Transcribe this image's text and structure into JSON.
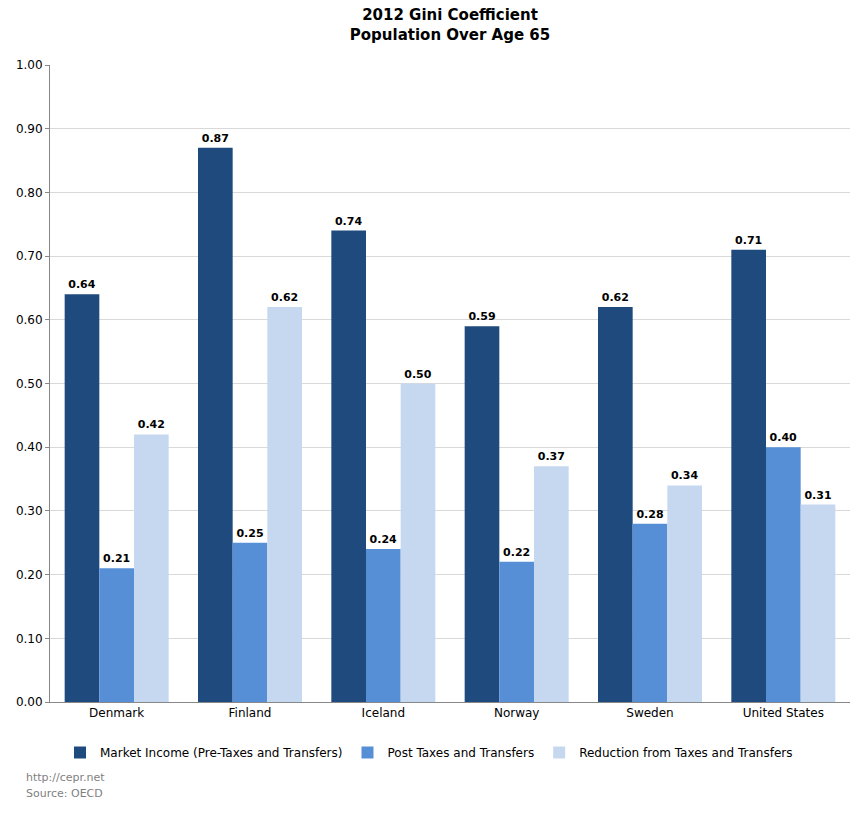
{
  "chart_data": {
    "type": "bar",
    "title": "2012 Gini Coefficient",
    "subtitle": "Population Over Age 65",
    "categories": [
      "Denmark",
      "Finland",
      "Iceland",
      "Norway",
      "Sweden",
      "United States"
    ],
    "series": [
      {
        "name": "Market Income (Pre-Taxes and Transfers)",
        "color": "#1f4a7e",
        "values": [
          0.64,
          0.87,
          0.74,
          0.59,
          0.62,
          0.71
        ],
        "value_labels": [
          "0.64",
          "0.87",
          "0.74",
          "0.59",
          "0.62",
          "0.71"
        ]
      },
      {
        "name": "Post Taxes and Transfers",
        "color": "#568fd6",
        "values": [
          0.21,
          0.25,
          0.24,
          0.22,
          0.28,
          0.4
        ],
        "value_labels": [
          "0.21",
          "0.25",
          "0.24",
          "0.22",
          "0.28",
          "0.40"
        ]
      },
      {
        "name": "Reduction from Taxes and Transfers",
        "color": "#c6d8f0",
        "values": [
          0.42,
          0.62,
          0.5,
          0.37,
          0.34,
          0.31
        ],
        "value_labels": [
          "0.42",
          "0.62",
          "0.50",
          "0.37",
          "0.34",
          "0.31"
        ]
      }
    ],
    "ylim": [
      0,
      1
    ],
    "yticks": [
      {
        "value": 0,
        "label": "0.00"
      },
      {
        "value": 0.1,
        "label": "0.10"
      },
      {
        "value": 0.2,
        "label": "0.20"
      },
      {
        "value": 0.3,
        "label": "0.30"
      },
      {
        "value": 0.4,
        "label": "0.40"
      },
      {
        "value": 0.5,
        "label": "0.50"
      },
      {
        "value": 0.6,
        "label": "0.60"
      },
      {
        "value": 0.7,
        "label": "0.70"
      },
      {
        "value": 0.8,
        "label": "0.80"
      },
      {
        "value": 0.9,
        "label": "0.90"
      },
      {
        "value": 1,
        "label": "1.00"
      }
    ],
    "grid": true,
    "legend": "bottom",
    "data_labels": true,
    "annotations": [
      "http://cepr.net",
      "Source: OECD"
    ]
  }
}
